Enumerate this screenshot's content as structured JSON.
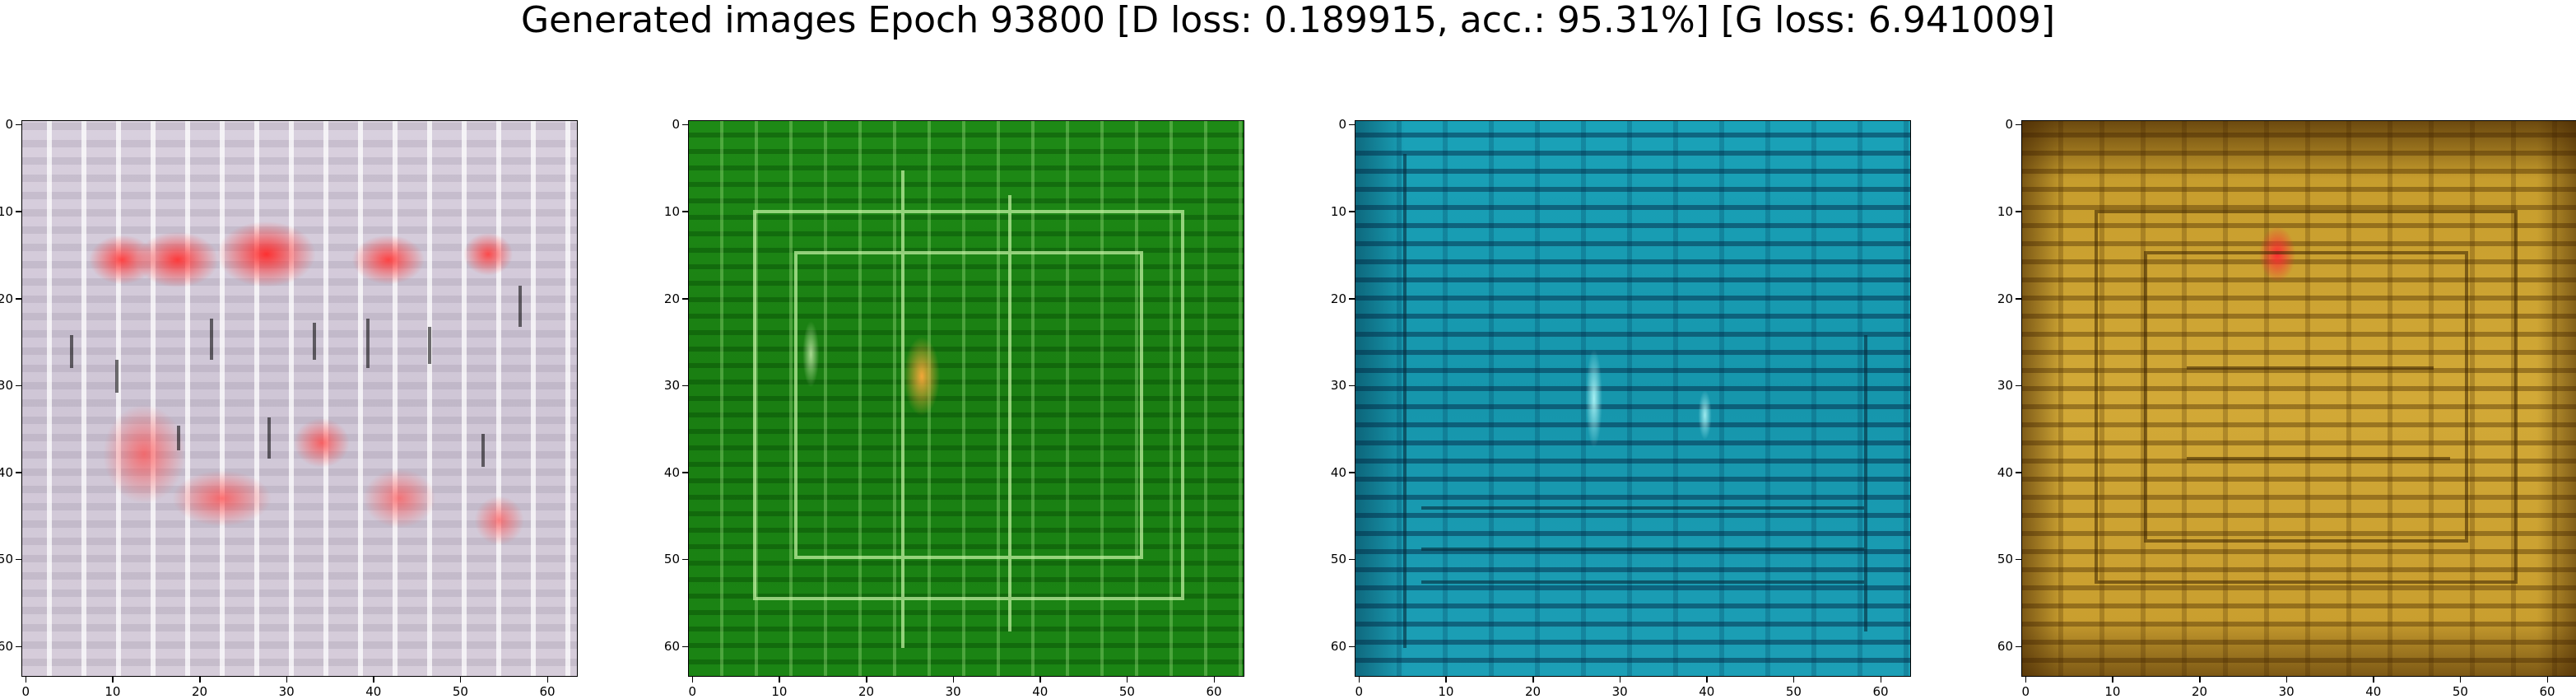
{
  "figure": {
    "title": "Generated images Epoch 93800 [D loss: 0.189915, acc.: 95.31%] [G loss: 6.941009]"
  },
  "axes": {
    "x_ticks": [
      "0",
      "10",
      "20",
      "30",
      "40",
      "50",
      "60"
    ],
    "y_ticks": [
      "0",
      "10",
      "20",
      "30",
      "40",
      "50",
      "60"
    ],
    "xlim": [
      -0.5,
      63.5
    ],
    "ylim": [
      63.5,
      -0.5
    ]
  },
  "panels": [
    {
      "dominant_color": "#d3cad9",
      "accent_color": "#ff3c3c"
    },
    {
      "dominant_color": "#1c8414",
      "accent_color": "#ffaa3c"
    },
    {
      "dominant_color": "#1a9cb2",
      "accent_color": "#bef5ff"
    },
    {
      "dominant_color": "#c99f30",
      "accent_color": "#ff2832"
    }
  ]
}
